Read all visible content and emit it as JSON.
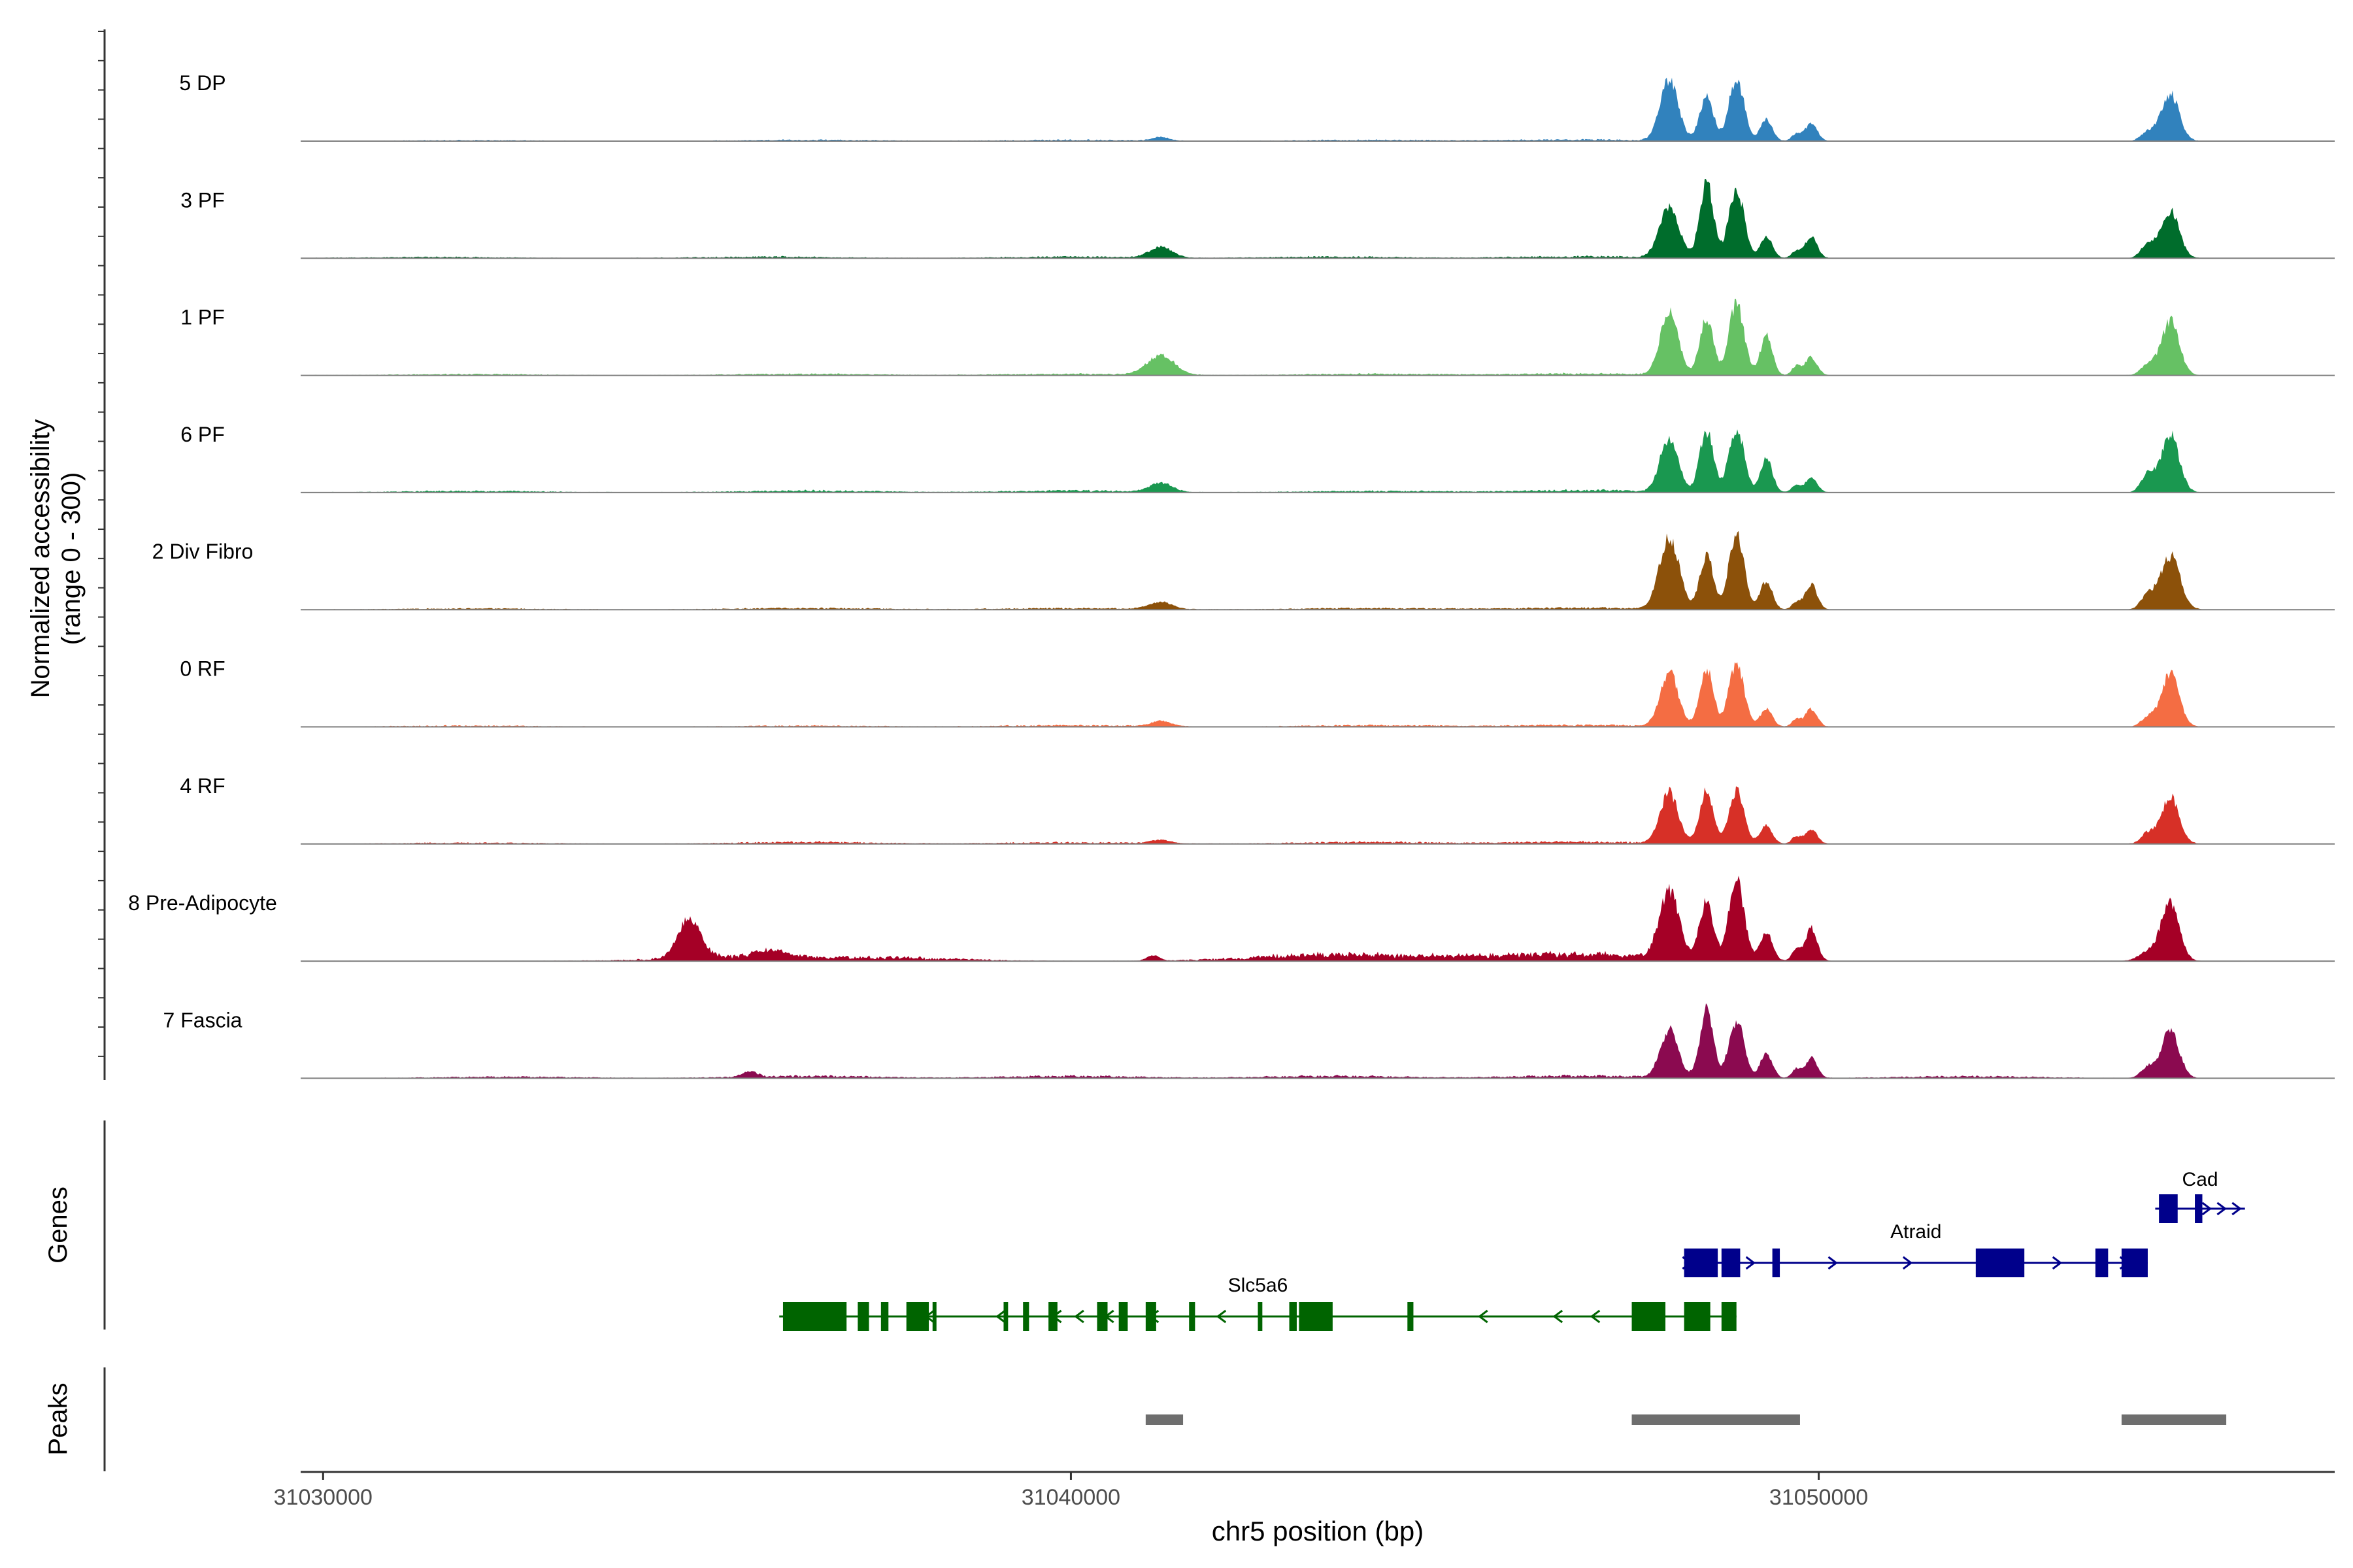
{
  "chart_data": {
    "type": "area",
    "region": "chr5",
    "xlabel": "chr5 position (bp)",
    "ylabel_line1": "Normalized accessibility",
    "ylabel_line2": "(range 0 - 300)",
    "y_range": [
      0,
      300
    ],
    "x_range": [
      31029700,
      31056900
    ],
    "x_ticks": [
      {
        "value": 31030000,
        "label": "31030000"
      },
      {
        "value": 31040000,
        "label": "31040000"
      },
      {
        "value": 31050000,
        "label": "31050000"
      }
    ],
    "tracks": [
      {
        "name": "5 DP",
        "color": "#3182bd",
        "peaks": [
          [
            31041200,
            10,
            110
          ],
          [
            31048000,
            170,
            120
          ],
          [
            31048500,
            125,
            90
          ],
          [
            31048900,
            175,
            100
          ],
          [
            31049300,
            60,
            80
          ],
          [
            31049700,
            20,
            60
          ],
          [
            31049900,
            50,
            80
          ],
          [
            31054400,
            25,
            90
          ],
          [
            31054700,
            130,
            120
          ]
        ],
        "noise": [
          [
            31032000,
            2
          ],
          [
            31036500,
            3
          ],
          [
            31040000,
            3
          ],
          [
            31044000,
            3
          ],
          [
            31046800,
            4
          ]
        ]
      },
      {
        "name": "3 PF",
        "color": "#006d2c",
        "peaks": [
          [
            31041200,
            30,
            150
          ],
          [
            31048000,
            140,
            130
          ],
          [
            31048500,
            210,
            90
          ],
          [
            31048900,
            195,
            100
          ],
          [
            31049300,
            60,
            80
          ],
          [
            31049700,
            20,
            60
          ],
          [
            31049900,
            60,
            80
          ],
          [
            31054400,
            40,
            90
          ],
          [
            31054700,
            130,
            120
          ]
        ],
        "noise": [
          [
            31031500,
            3
          ],
          [
            31036000,
            4
          ],
          [
            31040000,
            4
          ],
          [
            31043500,
            4
          ],
          [
            31046800,
            5
          ]
        ]
      },
      {
        "name": "1 PF",
        "color": "#66c164",
        "peaks": [
          [
            31041200,
            55,
            180
          ],
          [
            31048000,
            175,
            120
          ],
          [
            31048500,
            160,
            90
          ],
          [
            31048900,
            200,
            100
          ],
          [
            31049300,
            110,
            80
          ],
          [
            31049700,
            25,
            60
          ],
          [
            31049900,
            50,
            80
          ],
          [
            31054400,
            30,
            90
          ],
          [
            31054700,
            150,
            120
          ]
        ],
        "noise": [
          [
            31032000,
            3
          ],
          [
            31036500,
            4
          ],
          [
            31040000,
            4
          ],
          [
            31044000,
            4
          ],
          [
            31046800,
            5
          ]
        ]
      },
      {
        "name": "6 PF",
        "color": "#1a9850",
        "peaks": [
          [
            31041200,
            25,
            150
          ],
          [
            31048000,
            150,
            120
          ],
          [
            31048500,
            170,
            90
          ],
          [
            31048900,
            180,
            100
          ],
          [
            31049300,
            95,
            80
          ],
          [
            31049700,
            20,
            60
          ],
          [
            31049900,
            40,
            80
          ],
          [
            31054400,
            50,
            90
          ],
          [
            31054700,
            160,
            120
          ]
        ],
        "noise": [
          [
            31032000,
            4
          ],
          [
            31036500,
            5
          ],
          [
            31040000,
            5
          ],
          [
            31044000,
            4
          ],
          [
            31046800,
            6
          ]
        ]
      },
      {
        "name": "2 Div Fibro",
        "color": "#8c510a",
        "peaks": [
          [
            31041200,
            20,
            150
          ],
          [
            31048000,
            200,
            130
          ],
          [
            31048500,
            150,
            90
          ],
          [
            31048900,
            215,
            100
          ],
          [
            31049300,
            80,
            80
          ],
          [
            31049700,
            20,
            60
          ],
          [
            31049900,
            70,
            80
          ],
          [
            31054400,
            40,
            90
          ],
          [
            31054700,
            150,
            130
          ]
        ],
        "noise": [
          [
            31032000,
            3
          ],
          [
            31036500,
            4
          ],
          [
            31040000,
            4
          ],
          [
            31044000,
            4
          ],
          [
            31046800,
            5
          ]
        ]
      },
      {
        "name": "0 RF",
        "color": "#f46d43",
        "peaks": [
          [
            31041200,
            15,
            130
          ],
          [
            31048000,
            150,
            120
          ],
          [
            31048500,
            160,
            90
          ],
          [
            31048900,
            175,
            100
          ],
          [
            31049300,
            50,
            80
          ],
          [
            31049700,
            20,
            60
          ],
          [
            31049900,
            50,
            80
          ],
          [
            31054400,
            25,
            90
          ],
          [
            31054700,
            145,
            120
          ]
        ],
        "noise": [
          [
            31032000,
            3
          ],
          [
            31036500,
            3
          ],
          [
            31040000,
            4
          ],
          [
            31044000,
            4
          ],
          [
            31046800,
            5
          ]
        ]
      },
      {
        "name": "4 RF",
        "color": "#d73027",
        "peaks": [
          [
            31041200,
            10,
            130
          ],
          [
            31048000,
            140,
            120
          ],
          [
            31048500,
            145,
            90
          ],
          [
            31048900,
            150,
            100
          ],
          [
            31049300,
            50,
            80
          ],
          [
            31049700,
            20,
            60
          ],
          [
            31049900,
            40,
            80
          ],
          [
            31054400,
            30,
            90
          ],
          [
            31054700,
            130,
            120
          ]
        ],
        "noise": [
          [
            31032000,
            3
          ],
          [
            31036500,
            5
          ],
          [
            31040000,
            4
          ],
          [
            31044000,
            5
          ],
          [
            31046800,
            6
          ]
        ]
      },
      {
        "name": "8 Pre-Adipocyte",
        "color": "#a50026",
        "peaks": [
          [
            31034900,
            110,
            150
          ],
          [
            31036000,
            20,
            200
          ],
          [
            31041100,
            15,
            80
          ],
          [
            31048000,
            185,
            130
          ],
          [
            31048500,
            160,
            90
          ],
          [
            31048900,
            230,
            100
          ],
          [
            31049300,
            80,
            80
          ],
          [
            31049700,
            30,
            60
          ],
          [
            31049900,
            90,
            80
          ],
          [
            31054400,
            25,
            120
          ],
          [
            31054700,
            165,
            120
          ]
        ],
        "noise": [
          [
            31035500,
            12
          ],
          [
            31037500,
            10
          ],
          [
            31043200,
            15
          ],
          [
            31044700,
            12
          ],
          [
            31046500,
            14
          ],
          [
            31047500,
            10
          ]
        ]
      },
      {
        "name": "7 Fascia",
        "color": "#8b0a50",
        "peaks": [
          [
            31035700,
            15,
            100
          ],
          [
            31048000,
            130,
            120
          ],
          [
            31048500,
            185,
            90
          ],
          [
            31048900,
            160,
            100
          ],
          [
            31049300,
            70,
            80
          ],
          [
            31049700,
            25,
            60
          ],
          [
            31049900,
            55,
            80
          ],
          [
            31054400,
            30,
            90
          ],
          [
            31054700,
            130,
            120
          ]
        ],
        "noise": [
          [
            31032500,
            4
          ],
          [
            31036500,
            6
          ],
          [
            31040000,
            6
          ],
          [
            31043500,
            6
          ],
          [
            31046800,
            7
          ],
          [
            31052000,
            5
          ]
        ]
      }
    ],
    "genes_label": "Genes",
    "genes": [
      {
        "name": "Cad",
        "strand": "+",
        "start": 31054500,
        "end": 31055700,
        "color": "#00008b",
        "row": 0,
        "exons": [
          [
            31054550,
            31054800
          ],
          [
            31055030,
            31055130
          ]
        ],
        "arrows": [
          31055200,
          31055400,
          31055600
        ]
      },
      {
        "name": "Atraid",
        "strand": "+",
        "start": 31048200,
        "end": 31054400,
        "color": "#00008b",
        "row": 1,
        "exons": [
          [
            31048200,
            31048650
          ],
          [
            31048700,
            31048950
          ],
          [
            31049380,
            31049480
          ],
          [
            31052100,
            31052750
          ],
          [
            31053700,
            31053870
          ],
          [
            31054050,
            31054400
          ]
        ],
        "arrows": [
          31048250,
          31049100,
          31050200,
          31051200,
          31053200,
          31054100
        ]
      },
      {
        "name": "Slc5a6",
        "strand": "-",
        "start": 31036100,
        "end": 31048900,
        "color": "#006400",
        "row": 2,
        "exons": [
          [
            31036150,
            31037000
          ],
          [
            31037150,
            31037300
          ],
          [
            31037460,
            31037560
          ],
          [
            31037800,
            31038100
          ],
          [
            31038150,
            31038200
          ],
          [
            31039100,
            31039160
          ],
          [
            31039360,
            31039440
          ],
          [
            31039700,
            31039820
          ],
          [
            31040350,
            31040490
          ],
          [
            31040640,
            31040760
          ],
          [
            31041000,
            31041140
          ],
          [
            31041580,
            31041660
          ],
          [
            31042500,
            31042560
          ],
          [
            31042920,
            31043020
          ],
          [
            31043050,
            31043500
          ],
          [
            31044500,
            31044580
          ],
          [
            31047500,
            31047950
          ],
          [
            31048200,
            31048550
          ],
          [
            31048700,
            31048900
          ]
        ],
        "arrows": [
          31038100,
          31039050,
          31039800,
          31040100,
          31040500,
          31041100,
          31042000,
          31045500,
          31046500,
          31047000
        ]
      }
    ],
    "peaks_label": "Peaks",
    "peaks": [
      [
        31041000,
        31041500
      ],
      [
        31047500,
        31049750
      ],
      [
        31054050,
        31055450
      ]
    ]
  }
}
